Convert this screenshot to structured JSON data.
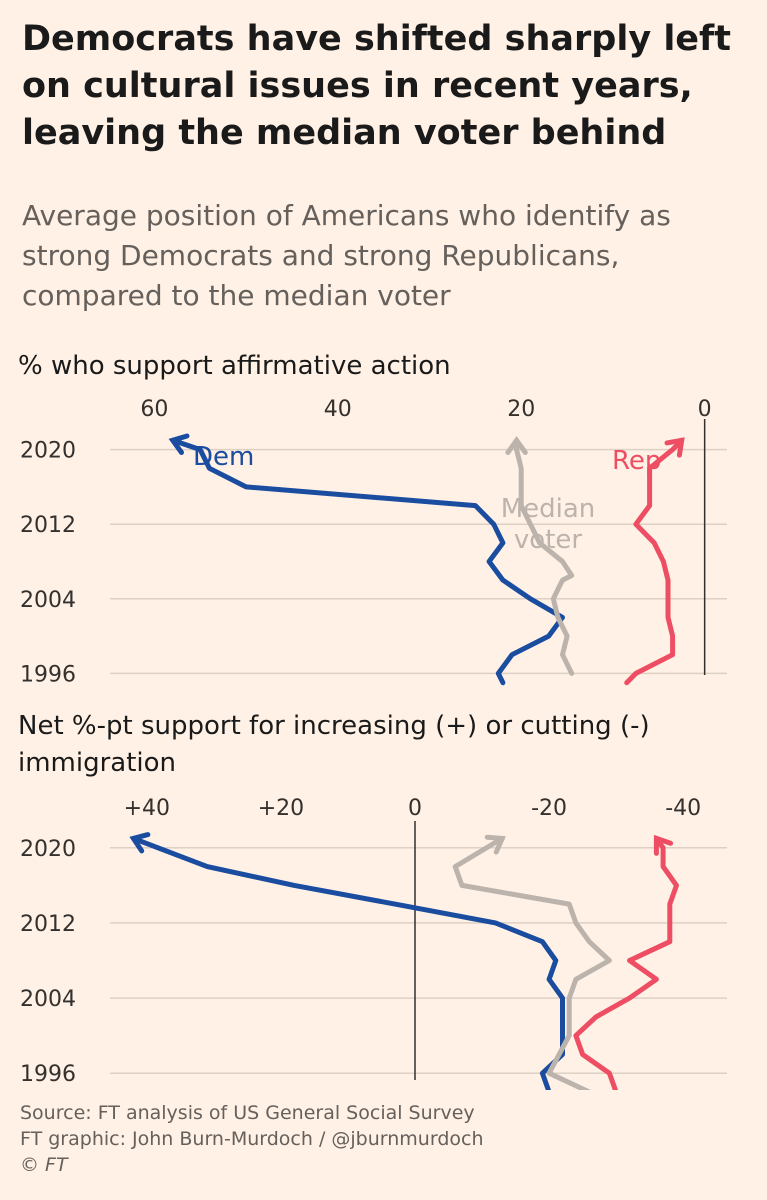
{
  "title": "Democrats have shifted sharply left on cultural issues in recent years, leaving the median voter behind",
  "subtitle": "Average position of Americans who identify as strong Democrats and strong Republicans, compared to the median voter",
  "colors": {
    "dem": "#1a4ca0",
    "rep": "#ee4e63",
    "median": "#bcb4ac",
    "grid": "#ddd0c4",
    "zero": "#33302e"
  },
  "chart_data": [
    {
      "type": "line",
      "title": "% who support affirmative action",
      "xlim": [
        62,
        -2
      ],
      "ylim": [
        1994,
        2022
      ],
      "x_ticks": [
        60,
        40,
        20,
        0
      ],
      "x_tick_labels": [
        "60",
        "40",
        "20",
        "0"
      ],
      "y_ticks": [
        2020,
        2012,
        2004,
        1996
      ],
      "y_tick_labels": [
        "2020",
        "2012",
        "2004",
        "1996"
      ],
      "series": [
        {
          "name": "Dem",
          "label": "Dem",
          "color": "dem",
          "years": [
            1995,
            1996,
            1998,
            2000,
            2002,
            2004,
            2006,
            2008,
            2010,
            2012,
            2014,
            2016,
            2018,
            2020,
            2021
          ],
          "values": [
            22,
            22.5,
            21,
            17,
            15.5,
            19,
            22,
            23.5,
            22,
            23,
            25,
            50,
            54,
            55,
            58
          ]
        },
        {
          "name": "Median voter",
          "label": "Median voter",
          "color": "median",
          "years": [
            1996,
            1998,
            2000,
            2002,
            2004,
            2006,
            2006.5,
            2008,
            2010,
            2012,
            2014,
            2016,
            2018,
            2020,
            2021
          ],
          "values": [
            14.5,
            15.5,
            15,
            16,
            16.5,
            15.5,
            14.5,
            15.5,
            18,
            19,
            20,
            20,
            20,
            20.5,
            20.5
          ]
        },
        {
          "name": "Rep",
          "label": "Rep",
          "color": "rep",
          "years": [
            1995,
            1996,
            1998,
            2000,
            2002,
            2004,
            2006,
            2008,
            2010,
            2012,
            2014,
            2016,
            2018,
            2020,
            2021
          ],
          "values": [
            8.5,
            7.5,
            3.5,
            3.5,
            4,
            4,
            4,
            4.5,
            5.5,
            7.5,
            6,
            6,
            6,
            3.5,
            2.5
          ]
        }
      ]
    },
    {
      "type": "line",
      "title": "Net %-pt support for increasing (+) or cutting (-) immigration",
      "xlim": [
        44,
        -44
      ],
      "ylim": [
        1994,
        2022
      ],
      "x_ticks": [
        40,
        20,
        0,
        -20,
        -40
      ],
      "x_tick_labels": [
        "+40",
        "+20",
        "0",
        "-20",
        "-40"
      ],
      "y_ticks": [
        2020,
        2012,
        2004,
        1996
      ],
      "y_tick_labels": [
        "2020",
        "2012",
        "2004",
        "1996"
      ],
      "series": [
        {
          "name": "Dem",
          "color": "dem",
          "years": [
            1994,
            1996,
            1998,
            2000,
            2002,
            2004,
            2006,
            2008,
            2010,
            2012,
            2014,
            2016,
            2018,
            2021
          ],
          "values": [
            -20,
            -19,
            -22,
            -22,
            -22,
            -22,
            -20,
            -21,
            -19,
            -12,
            3,
            18,
            31,
            42
          ]
        },
        {
          "name": "Median voter",
          "color": "median",
          "years": [
            1994,
            1996,
            2000,
            2004,
            2006,
            2008,
            2010,
            2012,
            2014,
            2016,
            2018,
            2021
          ],
          "values": [
            -26,
            -20,
            -23,
            -23,
            -24,
            -29,
            -26,
            -24,
            -23,
            -7,
            -6,
            -13
          ]
        },
        {
          "name": "Rep",
          "color": "rep",
          "years": [
            1994,
            1996,
            1998,
            2000,
            2002,
            2004,
            2006,
            2008,
            2010,
            2012,
            2014,
            2016,
            2018,
            2020,
            2021
          ],
          "values": [
            -30,
            -29,
            -25,
            -24,
            -27,
            -32,
            -36,
            -32,
            -38,
            -38,
            -38,
            -39,
            -37,
            -37,
            -36
          ]
        }
      ]
    }
  ],
  "footer": {
    "source": "Source: FT analysis of US General Social Survey",
    "graphic": "FT graphic: John Burn-Murdoch / @jburnmurdoch",
    "copyright": "© FT"
  }
}
